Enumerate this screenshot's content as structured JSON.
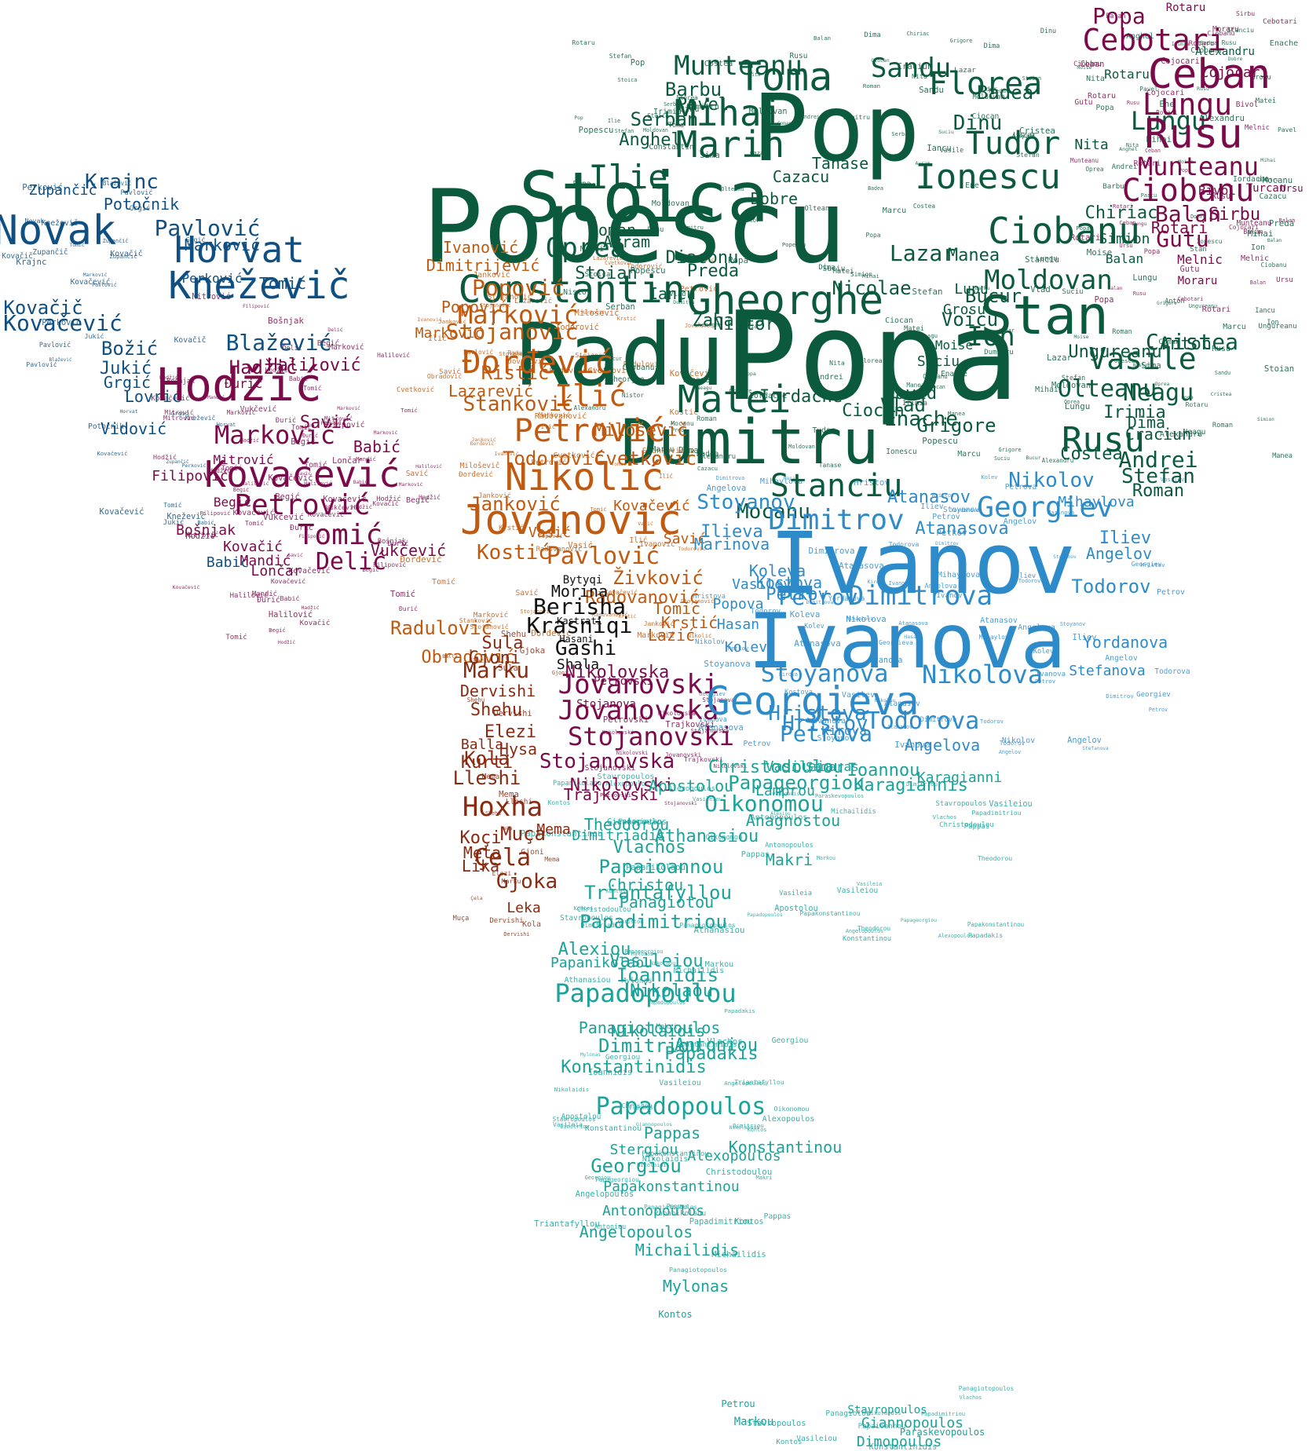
{
  "colors": {
    "ro_md": "#0b5a3e",
    "md": "#7a0a4a",
    "slo_cro": "#0f4f82",
    "bih": "#7a0a4a",
    "srb_mne": "#c05a10",
    "alb": "#8a2a10",
    "kos": "#111111",
    "mkd": "#7a0a4a",
    "bg": "#2e8bc9",
    "gr": "#1aa39a"
  },
  "words": {
    "ro_md": [
      "Popescu",
      "Popa",
      "Pop",
      "Radu",
      "Stoica",
      "Dumitru",
      "Ionescu",
      "Stan",
      "Gheorghe",
      "Constantin",
      "Munteanu",
      "Toma",
      "Mihai",
      "Marin",
      "Ilie",
      "Matei",
      "Rusu",
      "Ciobanu",
      "Florea",
      "Sandu",
      "Lungu",
      "Tudor",
      "Moldovan",
      "Vasile",
      "Oprea",
      "Stanciu",
      "Nicolae",
      "Olteanu",
      "Lazar",
      "Ion",
      "Dinu",
      "Mocanu",
      "Barbu",
      "Anghel",
      "Serban",
      "Pavel",
      "Badea",
      "Neagu",
      "Cristea",
      "Voicu",
      "Andrei",
      "Stefan",
      "Roman",
      "Enache",
      "Vlad",
      "Iordache",
      "David",
      "Preda",
      "Manea",
      "Grigore",
      "Costea",
      "Bucur",
      "Nistor",
      "Diaconu",
      "Avram",
      "Coman",
      "Stoian",
      "Tanase",
      "Iancu",
      "Dobre",
      "Zaharia",
      "Ungureanu",
      "Alexandru",
      "Nita",
      "Rotaru",
      "Anton",
      "Dima",
      "Chiriac",
      "Simion",
      "Lupu",
      "Balan",
      "Suciu",
      "Moise",
      "Grosu",
      "Cazacu",
      "Ciocan",
      "Irimia",
      "Craciun",
      "Sima",
      "Ene",
      "Marcu",
      "Pascu"
    ],
    "md": [
      "Ceban",
      "Rusu",
      "Lungu",
      "Ciobanu",
      "Munteanu",
      "Cebotari",
      "Gutu",
      "Rotari",
      "Balan",
      "Sirbu",
      "Popa",
      "Rotaru",
      "Cojocari",
      "Melnic",
      "Bivol",
      "Turcan",
      "Ursu",
      "Moraru"
    ],
    "slo_cro": [
      "Horvat",
      "Novak",
      "Kneževič",
      "Krajnc",
      "Pavlović",
      "Kovačević",
      "Blažević",
      "Božić",
      "Jukić",
      "Grgić",
      "Lovrić",
      "Vidović",
      "Kovačič",
      "Potočnik",
      "Zupančič",
      "Babić",
      "Marković",
      "Tomić",
      "Perković"
    ],
    "bih": [
      "Hodžić",
      "Kovačević",
      "Petrović",
      "Marković",
      "Tomić",
      "Delić",
      "Hadžić",
      "Halilović",
      "Savić",
      "Babić",
      "Bošnjak",
      "Mandić",
      "Lončar",
      "Begić",
      "Filipović",
      "Kovačić",
      "Vukčević",
      "Đurić",
      "Mitrović"
    ],
    "srb_mne": [
      "Jovanović",
      "Nikolić",
      "Petrović",
      "Đorđević",
      "Ilić",
      "Stojanović",
      "Marković",
      "Pavlović",
      "Popović",
      "Todorović",
      "Cvetković",
      "Ristić",
      "Stanković",
      "Kostić",
      "Živković",
      "Janković",
      "Miloševič",
      "Dimitrijević",
      "Ivanović",
      "Lazarević",
      "Kovačević",
      "Savić",
      "Vasić",
      "Radovanović",
      "Tomić",
      "Krstić",
      "Lazić",
      "Obradović",
      "Radulović",
      "Marković",
      "Popović"
    ],
    "alb": [
      "Hoxha",
      "Marku",
      "Leka",
      "Çela",
      "Gjoka",
      "Shehu",
      "Kola",
      "Lleshi",
      "Kurti",
      "Dervishi",
      "Muça",
      "Elezi",
      "Hysa",
      "Sula",
      "Gjoni",
      "Meta",
      "Koçi",
      "Lika",
      "Balla",
      "Mema"
    ],
    "kos": [
      "Berisha",
      "Krasniqi",
      "Gashi",
      "Morina",
      "Shala",
      "Bytyqi",
      "Kastrati",
      "Hasani"
    ],
    "mkd": [
      "Jovanovski",
      "Jovanovska",
      "Stojanovski",
      "Stojanovska",
      "Nikolovska",
      "Nikolovski",
      "Trajkovski",
      "Petrovski",
      "Stojanova"
    ],
    "bg": [
      "Ivanov",
      "Ivanova",
      "Georgieva",
      "Georgiev",
      "Dimitrov",
      "Dimitrova",
      "Petrov",
      "Nikolov",
      "Nikolova",
      "Stoyanova",
      "Stoyanov",
      "Todorov",
      "Todorova",
      "Petrova",
      "Hristov",
      "Hristova",
      "Atanasov",
      "Atanasova",
      "Angelov",
      "Ilieva",
      "Marinova",
      "Koleva",
      "Kostova",
      "Vasilev",
      "Popova",
      "Hasan",
      "Kolev",
      "Yordanova",
      "Iliev",
      "Petkov",
      "Kirova",
      "Mihaylova",
      "Stefanova",
      "Angelova"
    ],
    "gr": [
      "Papadopoulos",
      "Papadopoulou",
      "Papageorgiou",
      "Oikonomou",
      "Christodoulou",
      "Karagiannis",
      "Ioannou",
      "Georgiou",
      "Nikolaou",
      "Dimitriou",
      "Papaioannou",
      "Triantafyllou",
      "Athanasiou",
      "Vasileiou",
      "Vlachos",
      "Papadimitriou",
      "Konstantinidis",
      "Papadakis",
      "Ioannidis",
      "Makri",
      "Anagnostou",
      "Konstantinou",
      "Alexiou",
      "Antoniou",
      "Pappas",
      "Theodorou",
      "Panagiotou",
      "Dimitriadis",
      "Papanikolaou",
      "Giannopoulos",
      "Dimopoulos",
      "Stavropoulos",
      "Antonopoulos",
      "Michailidis",
      "Mylonas",
      "Angelopoulos",
      "Panagiotopoulos",
      "Nikolaidis",
      "Stergiou",
      "Alexopoulos",
      "Papakonstantinou",
      "Apostolou",
      "Lamprou",
      "Samaras",
      "Vasileia",
      "Kontos",
      "Markou",
      "Petrou",
      "Paraskevopoulos",
      "Christou",
      "Karagianni"
    ]
  }
}
